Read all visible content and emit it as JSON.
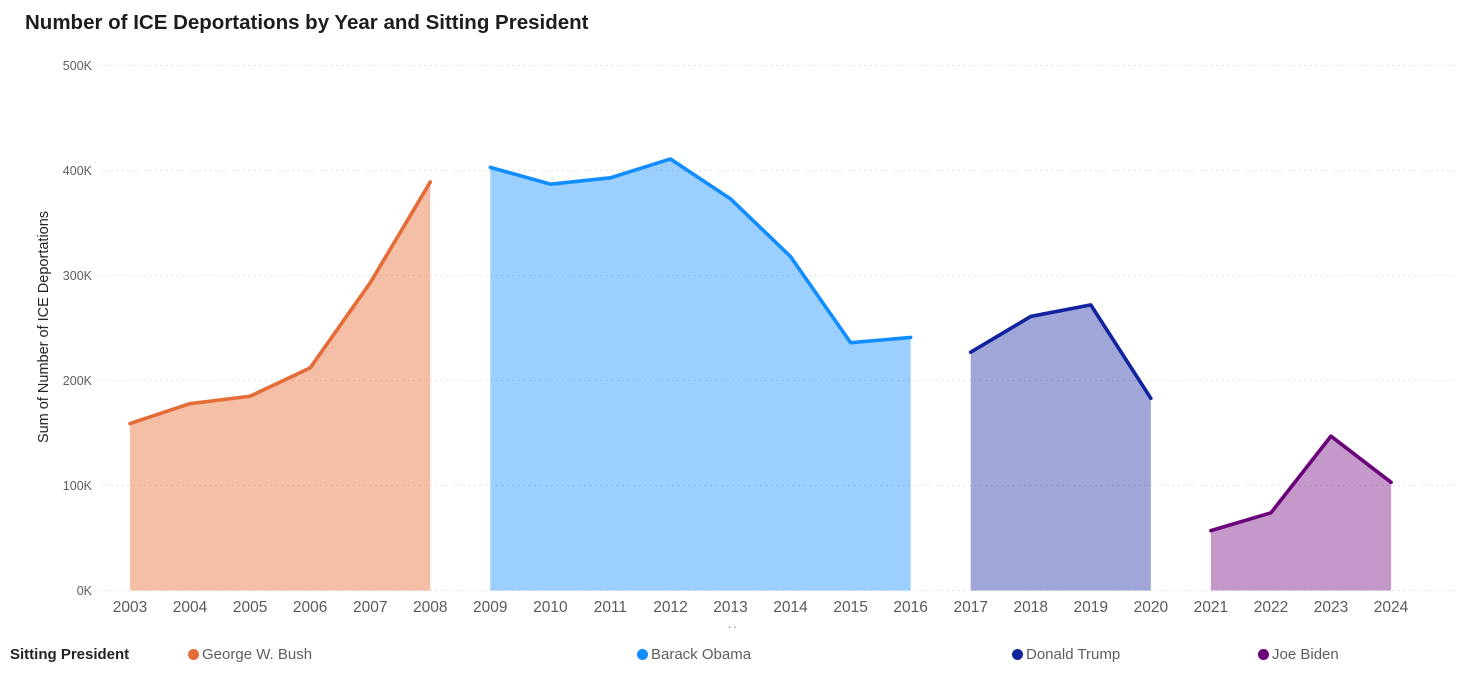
{
  "title": "Number of ICE Deportations by Year and Sitting President",
  "y_axis": {
    "title": "Sum of Number of ICE Deportations",
    "tick_labels": [
      "0K",
      "100K",
      "200K",
      "300K",
      "400K",
      "500K"
    ]
  },
  "x_axis": {
    "tick_labels": [
      "2003",
      "2004",
      "2005",
      "2006",
      "2007",
      "2008",
      "2009",
      "2010",
      "2011",
      "2012",
      "2013",
      "2014",
      "2015",
      "2016",
      "2017",
      "2018",
      "2019",
      "2020",
      "2021",
      "2022",
      "2023",
      "2024"
    ],
    "overflow_indicator": ".."
  },
  "legend": {
    "title": "Sitting President",
    "items": [
      {
        "label": "George W. Bush",
        "color": "#E66C37"
      },
      {
        "label": "Barack Obama",
        "color": "#118DFF"
      },
      {
        "label": "Donald Trump",
        "color": "#12239E"
      },
      {
        "label": "Joe Biden",
        "color": "#6B007B"
      }
    ]
  },
  "chart_data": {
    "type": "area",
    "title": "Number of ICE Deportations by Year and Sitting President",
    "xlabel": "",
    "ylabel": "Sum of Number of ICE Deportations",
    "ylim": [
      0,
      500000
    ],
    "y_tick_step": 100000,
    "x_range": [
      2003,
      2024
    ],
    "grid": "horizontal-dotted",
    "legend_position": "bottom",
    "series": [
      {
        "name": "George W. Bush",
        "color": "#E66C37",
        "fill": "rgba(230,108,55,0.44)",
        "years": [
          2003,
          2004,
          2005,
          2006,
          2007,
          2008
        ],
        "values": [
          159000,
          178000,
          185000,
          212000,
          293000,
          389000
        ]
      },
      {
        "name": "Barack Obama",
        "color": "#118DFF",
        "fill": "rgba(17,141,255,0.42)",
        "years": [
          2009,
          2010,
          2011,
          2012,
          2013,
          2014,
          2015,
          2016
        ],
        "values": [
          403000,
          387000,
          393000,
          411000,
          373000,
          318000,
          236000,
          241000
        ]
      },
      {
        "name": "Donald Trump",
        "color": "#12239E",
        "fill": "rgba(18,35,158,0.40)",
        "years": [
          2017,
          2018,
          2019,
          2020
        ],
        "values": [
          227000,
          261000,
          272000,
          183000
        ]
      },
      {
        "name": "Joe Biden",
        "color": "#6B007B",
        "fill": "rgba(107,0,123,0.40)",
        "years": [
          2021,
          2022,
          2023,
          2024
        ],
        "values": [
          57000,
          74000,
          147000,
          103000
        ]
      }
    ]
  }
}
